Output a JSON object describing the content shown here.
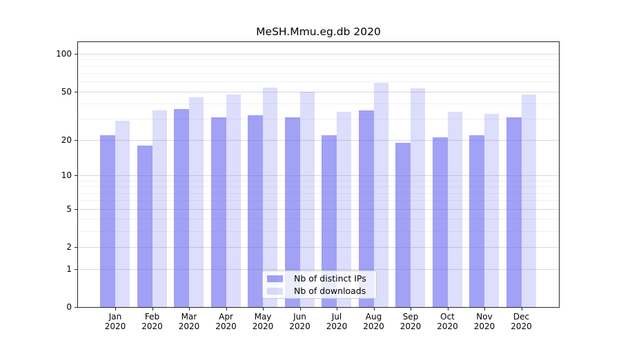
{
  "title": "MeSH.Mmu.eg.db 2020",
  "chart_data": {
    "type": "bar",
    "title": "MeSH.Mmu.eg.db 2020",
    "y_scale": "log1p",
    "grid": true,
    "categories": [
      "Jan 2020",
      "Feb 2020",
      "Mar 2020",
      "Apr 2020",
      "May 2020",
      "Jun 2020",
      "Jul 2020",
      "Aug 2020",
      "Sep 2020",
      "Oct 2020",
      "Nov 2020",
      "Dec 2020"
    ],
    "x_tick_months": [
      "Jan",
      "Feb",
      "Mar",
      "Apr",
      "May",
      "Jun",
      "Jul",
      "Aug",
      "Sep",
      "Oct",
      "Nov",
      "Dec"
    ],
    "x_tick_year": "2020",
    "series": [
      {
        "name": "Nb of distinct IPs",
        "color": "rgba(99,99,240,0.6)",
        "values": [
          22,
          18,
          36,
          31,
          32,
          31,
          22,
          35,
          19,
          21,
          22,
          31
        ]
      },
      {
        "name": "Nb of downloads",
        "color": "rgba(99,99,240,0.22)",
        "values": [
          29,
          35,
          45,
          47,
          54,
          50,
          34,
          59,
          53,
          34,
          33,
          47
        ]
      }
    ],
    "y_ticks": [
      100,
      50,
      20,
      10,
      5,
      2,
      1,
      0
    ],
    "y_minor_ticks": [
      3,
      4,
      6,
      7,
      8,
      9,
      30,
      40,
      60,
      70,
      80,
      90
    ],
    "ylim": [
      0,
      126
    ],
    "legend_position": "lower center"
  },
  "colors": {
    "bar_distinct_ips": "rgba(99,99,240,0.6)",
    "bar_downloads": "rgba(99,99,240,0.22)",
    "grid_major": "#d9d9d9",
    "grid_minor": "#f0f0f0",
    "spine": "#262626",
    "legend_border": "#cccccc",
    "legend_background": "rgba(255,255,255,0.8)"
  }
}
